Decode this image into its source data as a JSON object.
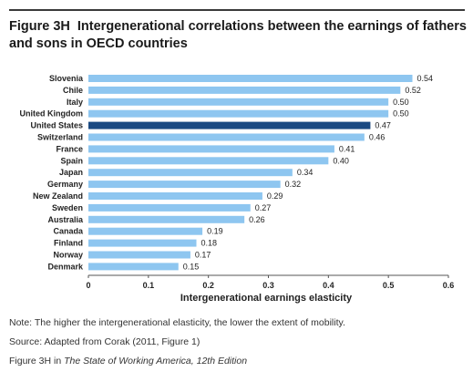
{
  "figure": {
    "label": "Figure 3H",
    "title": "Intergenerational correlations between the earnings of fathers and sons in OECD countries"
  },
  "colors": {
    "bar": "#8ec6f0",
    "highlight": "#1b4a82",
    "rule": "#3a3a3a",
    "axis": "#555555"
  },
  "chart_data": {
    "type": "bar",
    "orientation": "horizontal",
    "categories": [
      "Slovenia",
      "Chile",
      "Italy",
      "United Kingdom",
      "United States",
      "Switzerland",
      "France",
      "Spain",
      "Japan",
      "Germany",
      "New Zealand",
      "Sweden",
      "Australia",
      "Canada",
      "Finland",
      "Norway",
      "Denmark"
    ],
    "values": [
      0.54,
      0.52,
      0.5,
      0.5,
      0.47,
      0.46,
      0.41,
      0.4,
      0.34,
      0.32,
      0.29,
      0.27,
      0.26,
      0.19,
      0.18,
      0.17,
      0.15
    ],
    "value_labels": [
      "0.54",
      "0.52",
      "0.50",
      "0.50",
      "0.47",
      "0.46",
      "0.41",
      "0.40",
      "0.34",
      "0.32",
      "0.29",
      "0.27",
      "0.26",
      "0.19",
      "0.18",
      "0.17",
      "0.15"
    ],
    "highlight": "United States",
    "xlabel": "Intergenerational earnings elasticity",
    "ylabel": "",
    "xlim": [
      0,
      0.6
    ],
    "xticks": [
      0,
      0.1,
      0.2,
      0.3,
      0.4,
      0.5,
      0.6
    ],
    "xtick_labels": [
      "0",
      "0.1",
      "0.2",
      "0.3",
      "0.4",
      "0.5",
      "0.6"
    ],
    "grid": false,
    "legend": "none"
  },
  "footer": {
    "note": "Note: The higher the intergenerational elasticity, the lower the extent of mobility.",
    "source": "Source: Adapted from Corak (2011, Figure 1)",
    "credit_prefix": "Figure 3H in ",
    "credit_book": "The State of Working America, 12th Edition"
  }
}
